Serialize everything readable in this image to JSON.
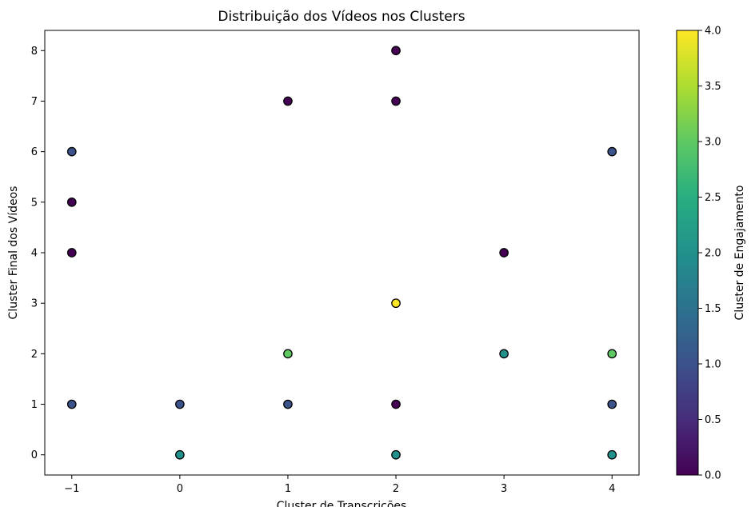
{
  "chart_data": {
    "type": "scatter",
    "title": "Distribuição dos Vídeos nos Clusters",
    "xlabel": "Cluster de Transcrições",
    "ylabel": "Cluster Final dos Vídeos",
    "xlim": [
      -1.25,
      4.25
    ],
    "ylim": [
      -0.4,
      8.4
    ],
    "xticks": [
      -1,
      0,
      1,
      2,
      3,
      4
    ],
    "yticks": [
      0,
      1,
      2,
      3,
      4,
      5,
      6,
      7,
      8
    ],
    "grid": false,
    "colorbar": {
      "label": "Cluster de Engajamento",
      "colormap": "viridis",
      "range": [
        0.0,
        4.0
      ],
      "ticks": [
        "0.0",
        "0.5",
        "1.0",
        "1.5",
        "2.0",
        "2.5",
        "3.0",
        "3.5",
        "4.0"
      ]
    },
    "points": [
      {
        "x": -1,
        "y": 6,
        "c": 1
      },
      {
        "x": -1,
        "y": 5,
        "c": 0
      },
      {
        "x": -1,
        "y": 4,
        "c": 0
      },
      {
        "x": -1,
        "y": 1,
        "c": 1
      },
      {
        "x": 0,
        "y": 1,
        "c": 1
      },
      {
        "x": 0,
        "y": 0,
        "c": 2
      },
      {
        "x": 1,
        "y": 7,
        "c": 0
      },
      {
        "x": 1,
        "y": 2,
        "c": 3
      },
      {
        "x": 1,
        "y": 1,
        "c": 1
      },
      {
        "x": 2,
        "y": 8,
        "c": 0
      },
      {
        "x": 2,
        "y": 7,
        "c": 0
      },
      {
        "x": 2,
        "y": 3,
        "c": 4
      },
      {
        "x": 2,
        "y": 1,
        "c": 0
      },
      {
        "x": 2,
        "y": 0,
        "c": 2
      },
      {
        "x": 3,
        "y": 4,
        "c": 0
      },
      {
        "x": 3,
        "y": 2,
        "c": 2
      },
      {
        "x": 4,
        "y": 6,
        "c": 1
      },
      {
        "x": 4,
        "y": 2,
        "c": 3
      },
      {
        "x": 4,
        "y": 1,
        "c": 1
      },
      {
        "x": 4,
        "y": 0,
        "c": 2
      }
    ]
  }
}
